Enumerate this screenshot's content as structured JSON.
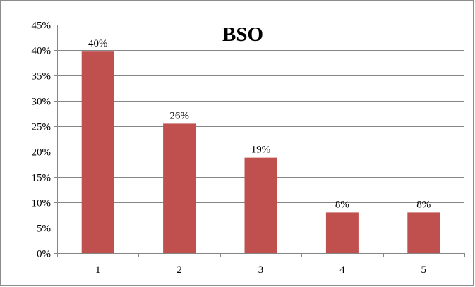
{
  "chart_data": {
    "type": "bar",
    "title": "BSO",
    "xlabel": "",
    "ylabel": "",
    "categories": [
      "1",
      "2",
      "3",
      "4",
      "5"
    ],
    "values": [
      0.397,
      0.255,
      0.188,
      0.08,
      0.08
    ],
    "data_labels": [
      "40%",
      "26%",
      "19%",
      "8%",
      "8%"
    ],
    "ylim": [
      0,
      0.45
    ],
    "y_ticks": [
      0,
      0.05,
      0.1,
      0.15,
      0.2,
      0.25,
      0.3,
      0.35,
      0.4,
      0.45
    ],
    "y_tick_labels": [
      "0%",
      "5%",
      "10%",
      "15%",
      "20%",
      "25%",
      "30%",
      "35%",
      "40%",
      "45%"
    ],
    "grid": true,
    "legend": "none",
    "bar_color": "#c0504d",
    "grid_color": "#868686"
  }
}
